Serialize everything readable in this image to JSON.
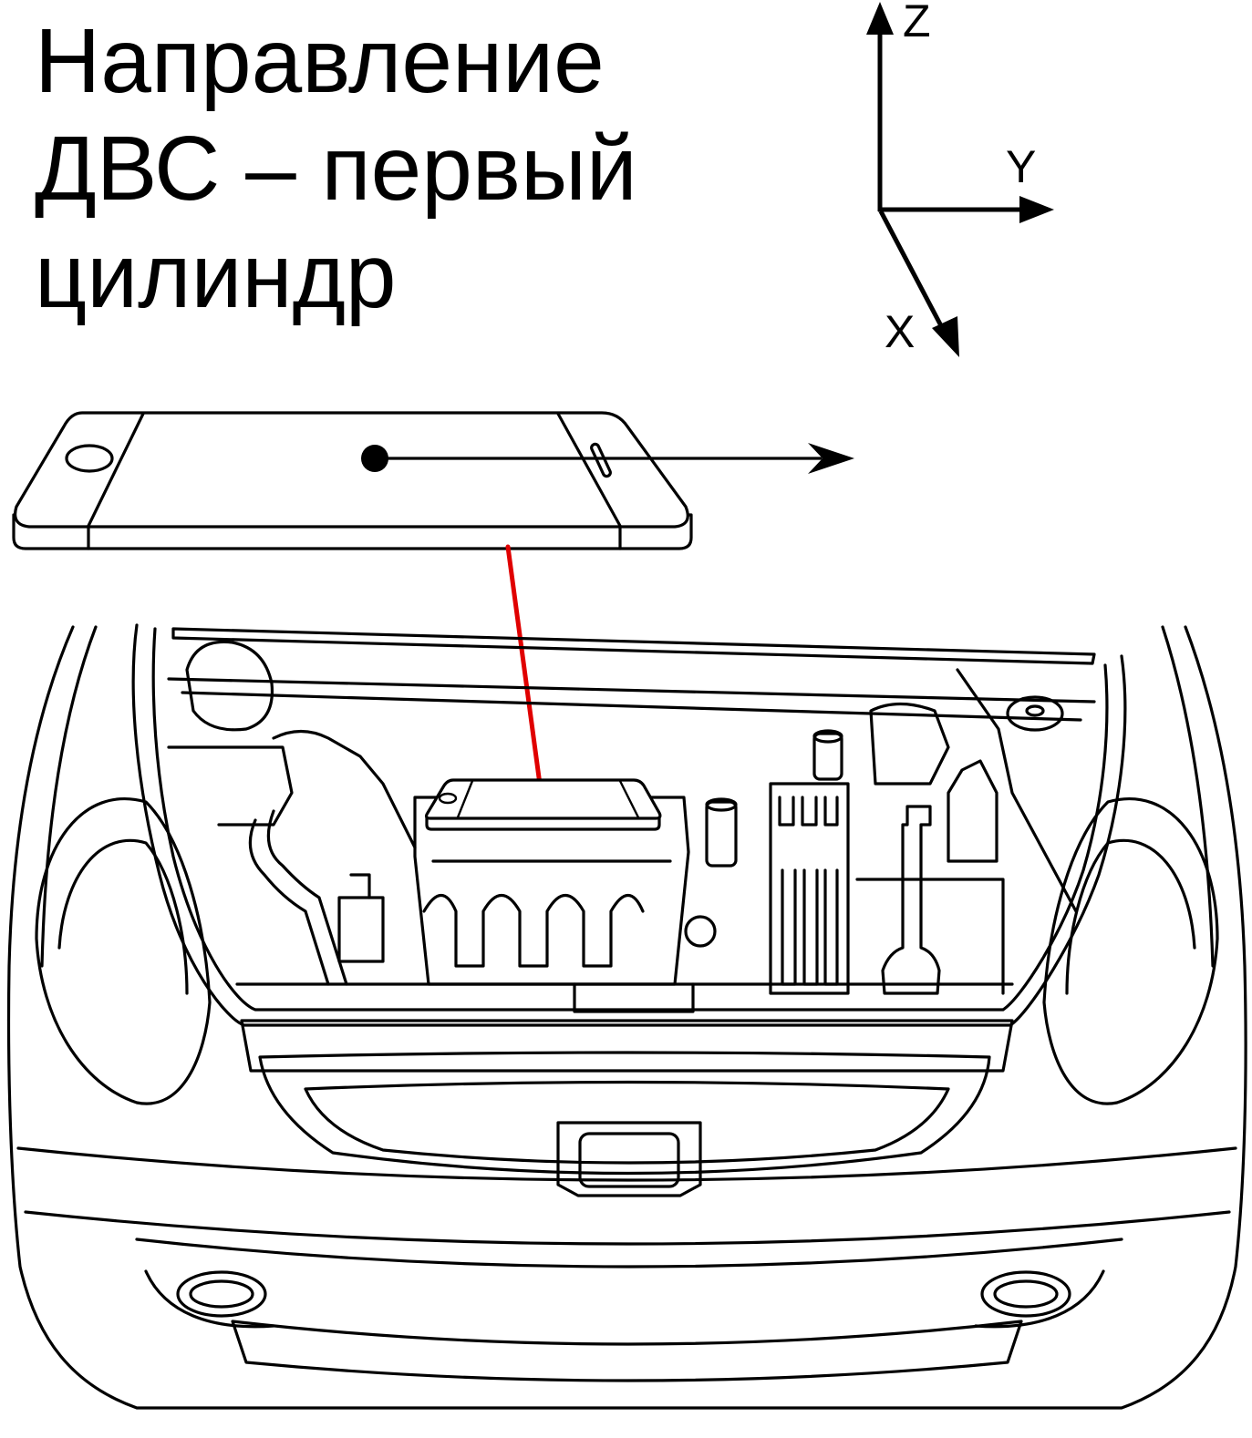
{
  "caption": {
    "line1": "Направление",
    "line2": "ДВС – первый",
    "line3": "цилиндр"
  },
  "axes": {
    "z_label": "Z",
    "y_label": "Y",
    "x_label": "X"
  },
  "colors": {
    "ink": "#000000",
    "placement_line": "#e00000",
    "background": "#ffffff"
  }
}
